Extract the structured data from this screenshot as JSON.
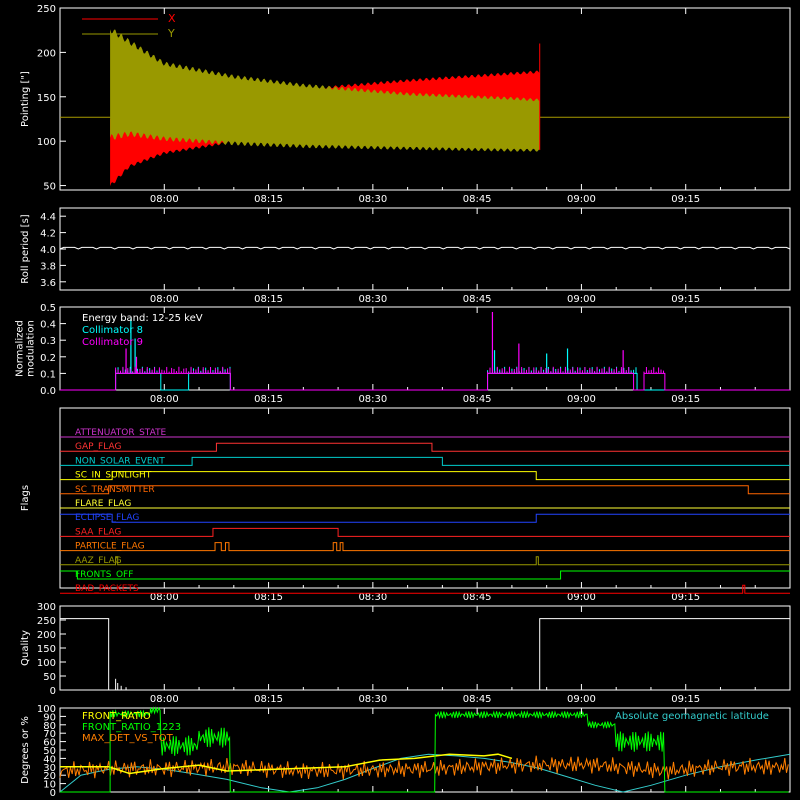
{
  "time_axis": {
    "tick_labels": [
      "08:00",
      "08:15",
      "08:30",
      "08:45",
      "09:00",
      "09:15"
    ],
    "tick_minutes": [
      480,
      495,
      510,
      525,
      540,
      555
    ],
    "range_minutes": [
      465,
      570
    ],
    "note_units": "minutes after 00:00"
  },
  "chart_data": [
    {
      "type": "line",
      "name": "pointing",
      "ylabel": "Pointing [\"]",
      "ylim": [
        45,
        250
      ],
      "yticks": [
        50,
        100,
        150,
        200,
        250
      ],
      "legend": [
        "X",
        "Y"
      ],
      "legend_position": "top-left",
      "colors": {
        "X": "#ff0000",
        "Y": "#999900",
        "baseline": "#a89a00"
      },
      "baseline": 127,
      "x_active_range": [
        472,
        534
      ],
      "series": [
        {
          "name": "X",
          "envelope": [
            {
              "t": 472.2,
              "low": 47,
              "high": 128
            },
            {
              "t": 475,
              "low": 70,
              "high": 130
            },
            {
              "t": 480,
              "low": 85,
              "high": 140
            },
            {
              "t": 490,
              "low": 98,
              "high": 150
            },
            {
              "t": 500,
              "low": 105,
              "high": 160
            },
            {
              "t": 515,
              "low": 112,
              "high": 170
            },
            {
              "t": 530,
              "low": 118,
              "high": 178
            },
            {
              "t": 534,
              "low": 120,
              "high": 180
            }
          ]
        },
        {
          "name": "Y",
          "envelope": [
            {
              "t": 472.2,
              "low": 100,
              "high": 230
            },
            {
              "t": 475,
              "low": 105,
              "high": 215
            },
            {
              "t": 480,
              "low": 100,
              "high": 190
            },
            {
              "t": 490,
              "low": 95,
              "high": 175
            },
            {
              "t": 500,
              "low": 92,
              "high": 165
            },
            {
              "t": 515,
              "low": 90,
              "high": 155
            },
            {
              "t": 530,
              "low": 88,
              "high": 150
            },
            {
              "t": 534,
              "low": 88,
              "high": 148
            }
          ]
        }
      ]
    },
    {
      "type": "line",
      "name": "roll-period",
      "ylabel": "Roll period [s]",
      "ylim": [
        3.5,
        4.5
      ],
      "yticks": [
        3.6,
        3.8,
        4.0,
        4.2,
        4.4
      ],
      "series": [
        {
          "name": "",
          "value": 4.02,
          "color": "#ffffff"
        }
      ]
    },
    {
      "type": "line",
      "name": "modulation",
      "ylabel": "Normalized modulation",
      "ylim": [
        0,
        0.5
      ],
      "yticks": [
        0.0,
        0.1,
        0.2,
        0.3,
        0.4,
        0.5
      ],
      "annotations": [
        "Energy band: 12-25 keV"
      ],
      "series": [
        {
          "name": "Collimator 8",
          "color": "#00ffff",
          "segments": [
            [
              473,
              479.5,
              0.1
            ],
            [
              483.5,
              489.5,
              0.1
            ],
            [
              526.5,
              548,
              0.1
            ]
          ],
          "spikes": [
            [
              475.2,
              0.43
            ],
            [
              475.8,
              0.31
            ],
            [
              527.5,
              0.24
            ],
            [
              535,
              0.22
            ],
            [
              538,
              0.25
            ]
          ]
        },
        {
          "name": "Collimator 9",
          "color": "#ff00ff",
          "segments": [
            [
              473,
              489.5,
              0.1
            ],
            [
              526.5,
              547.5,
              0.1
            ],
            [
              549,
              552,
              0.1
            ]
          ],
          "spikes": [
            [
              474.5,
              0.25
            ],
            [
              476,
              0.2
            ],
            [
              527.2,
              0.47
            ],
            [
              531,
              0.28
            ],
            [
              546,
              0.24
            ]
          ]
        }
      ]
    },
    {
      "type": "table",
      "name": "flags",
      "ylabel": "Flags",
      "rows": [
        {
          "label": "ATTENUATOR_STATE",
          "color": "#cc33cc",
          "segments": []
        },
        {
          "label": "GAP_FLAG",
          "color": "#ff3333",
          "segments": [
            [
              487.5,
              518.5
            ]
          ]
        },
        {
          "label": "NON_SOLAR_EVENT",
          "color": "#00cccc",
          "segments": [
            [
              484,
              520
            ]
          ]
        },
        {
          "label": "SC_IN_SUNLIGHT",
          "color": "#ffff00",
          "segments": [
            [
              472.5,
              533.5
            ]
          ]
        },
        {
          "label": "SC_TRANSMITTER",
          "color": "#ff6600",
          "segments": [
            [
              472,
              564
            ]
          ]
        },
        {
          "label": "FLARE_FLAG",
          "color": "#ffff33",
          "segments": []
        },
        {
          "label": "ECLIPSE_FLAG",
          "color": "#2244ff",
          "low_segments": [
            [
              472.5,
              533.5
            ]
          ]
        },
        {
          "label": "SAA_FLAG",
          "color": "#ff2222",
          "segments": [
            [
              487,
              505
            ]
          ]
        },
        {
          "label": "PARTICLE_FLAG",
          "color": "#ff7700",
          "segments": [
            [
              487.3,
              488.2
            ],
            [
              488.8,
              489.3
            ],
            [
              504.3,
              504.8
            ],
            [
              505.3,
              505.7
            ]
          ]
        },
        {
          "label": "AAZ_FLAG",
          "color": "#999900",
          "segments": [
            [
              473,
              473.3
            ],
            [
              533.5,
              533.8
            ]
          ]
        },
        {
          "label": "FRONTS_OFF",
          "color": "#00ff00",
          "low_segments": [
            [
              467.5,
              537
            ]
          ]
        },
        {
          "label": "BAD_PACKETS",
          "color": "#ff0000",
          "segments": [
            [
              563.2,
              563.5
            ]
          ]
        }
      ]
    },
    {
      "type": "line",
      "name": "quality",
      "ylabel": "Quality",
      "ylim": [
        0,
        300
      ],
      "yticks": [
        0,
        50,
        100,
        150,
        200,
        250,
        300
      ],
      "series": [
        {
          "name": "",
          "color": "#ffffff",
          "segments": [
            [
              465,
              472,
              255
            ],
            [
              472,
              534,
              0
            ],
            [
              534,
              570,
              255
            ]
          ],
          "spikes": [
            [
              473,
              40
            ],
            [
              473.3,
              25
            ],
            [
              473.8,
              15
            ],
            [
              474.5,
              10
            ]
          ]
        }
      ]
    },
    {
      "type": "line",
      "name": "ratios",
      "ylabel": "Degrees or %",
      "ylim": [
        0,
        100
      ],
      "yticks": [
        0,
        10,
        20,
        30,
        40,
        50,
        60,
        70,
        80,
        90,
        100
      ],
      "legend": [
        "FRONT_RATIO",
        "FRONT_RATIO_1223",
        "MAX_DET_VS_TOT"
      ],
      "annotations": [
        "Absolute geomagnetic latitude"
      ],
      "series": [
        {
          "name": "FRONT_RATIO",
          "color": "#ffff00",
          "points": [
            [
              465,
              30
            ],
            [
              472,
              30
            ],
            [
              475,
              22
            ],
            [
              480,
              28
            ],
            [
              485,
              32
            ],
            [
              489,
              25
            ],
            [
              506,
              30
            ],
            [
              511,
              38
            ],
            [
              516,
              40
            ],
            [
              521,
              45
            ],
            [
              526,
              43
            ],
            [
              528,
              45
            ],
            [
              530,
              40
            ]
          ]
        },
        {
          "name": "FRONT_RATIO_1223",
          "color": "#00ff00",
          "segments": [
            [
              465,
              472.2,
              0
            ],
            [
              472.2,
              478,
              93
            ],
            [
              478,
              479.5,
              98
            ],
            [
              479.5,
              485,
              55
            ],
            [
              485,
              489.5,
              65
            ],
            [
              489.5,
              519,
              0
            ],
            [
              519,
              541,
              92
            ],
            [
              541,
              545,
              80
            ],
            [
              545,
              552,
              60
            ],
            [
              552,
              570,
              0
            ]
          ]
        },
        {
          "name": "MAX_DET_VS_TOT",
          "color": "#ff7f00",
          "points": [
            [
              465,
              25
            ],
            [
              472,
              28
            ],
            [
              480,
              28
            ],
            [
              489,
              30
            ],
            [
              500,
              25
            ],
            [
              519,
              28
            ],
            [
              530,
              32
            ],
            [
              541,
              33
            ],
            [
              552,
              25
            ],
            [
              560,
              30
            ],
            [
              570,
              30
            ]
          ]
        },
        {
          "name": "Absolute geomagnetic latitude",
          "color": "#33cccc",
          "points": [
            [
              465,
              0
            ],
            [
              468,
              20
            ],
            [
              472,
              27
            ],
            [
              476,
              30
            ],
            [
              480,
              27
            ],
            [
              484,
              22
            ],
            [
              489,
              15
            ],
            [
              494,
              5
            ],
            [
              498,
              0
            ],
            [
              502,
              5
            ],
            [
              506,
              15
            ],
            [
              510,
              28
            ],
            [
              514,
              40
            ],
            [
              518,
              45
            ],
            [
              522,
              43
            ],
            [
              526,
              40
            ],
            [
              530,
              35
            ],
            [
              534,
              28
            ],
            [
              538,
              18
            ],
            [
              542,
              8
            ],
            [
              546,
              0
            ],
            [
              550,
              8
            ],
            [
              555,
              20
            ],
            [
              560,
              30
            ],
            [
              565,
              38
            ],
            [
              570,
              45
            ]
          ]
        }
      ]
    }
  ]
}
